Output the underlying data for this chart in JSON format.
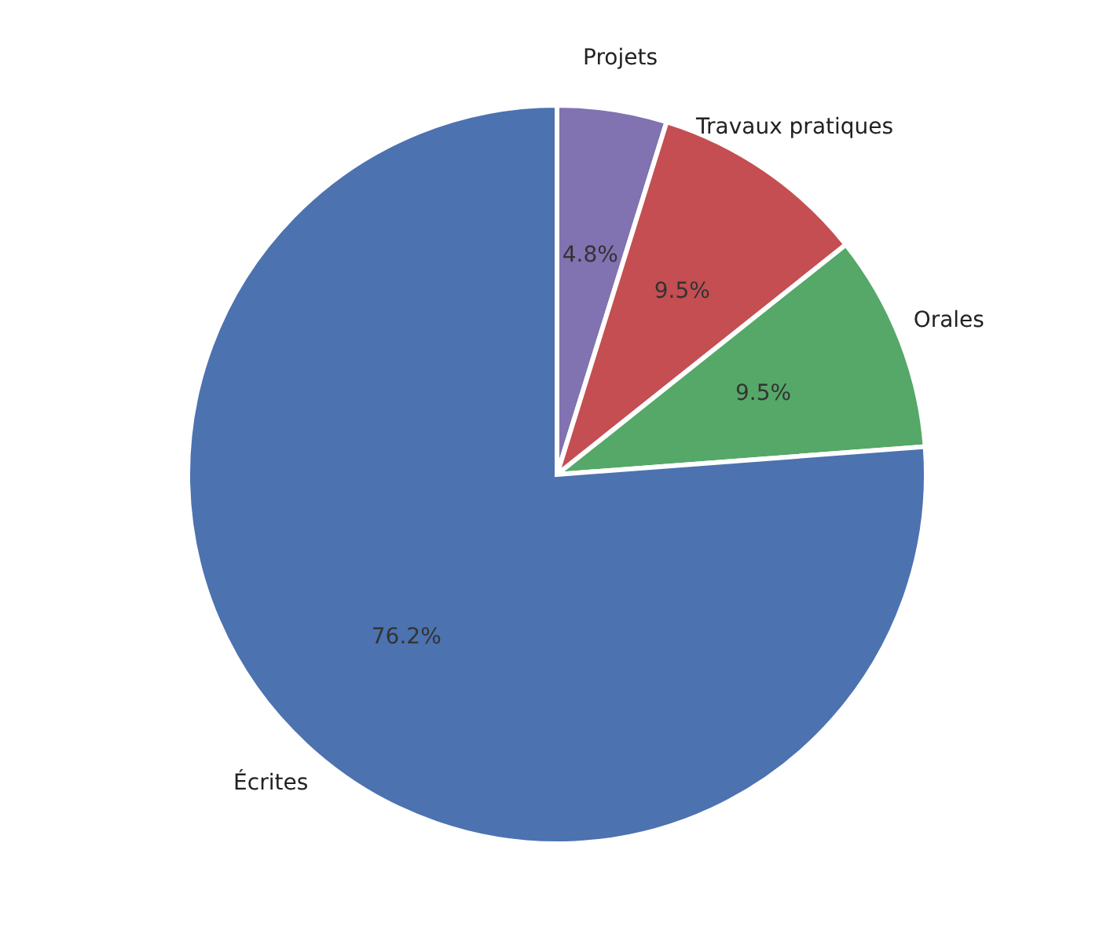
{
  "chart_data": {
    "type": "pie",
    "categories": [
      "Projets",
      "Travaux pratiques",
      "Orales",
      "Écrites"
    ],
    "values": [
      4.8,
      9.5,
      9.5,
      76.2
    ],
    "value_labels": [
      "4.8%",
      "9.5%",
      "9.5%",
      "76.2%"
    ],
    "colors": [
      "#8172b2",
      "#c44e52",
      "#55a868",
      "#4c72b0"
    ]
  }
}
